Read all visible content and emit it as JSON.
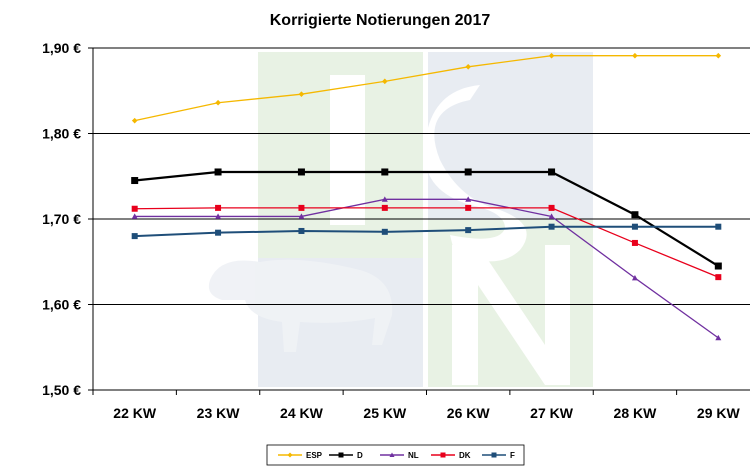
{
  "chart_data": {
    "type": "line",
    "title": "Korrigierte Notierungen 2017",
    "categories": [
      "22 KW",
      "23 KW",
      "24 KW",
      "25 KW",
      "26 KW",
      "27 KW",
      "28 KW",
      "29 KW"
    ],
    "y_tick_labels": [
      "1,90 €",
      "1,80 €",
      "1,70 €",
      "1,60 €",
      "1,50 €"
    ],
    "y_ticks": [
      1.9,
      1.8,
      1.7,
      1.6,
      1.5
    ],
    "ylim": [
      1.5,
      1.9
    ],
    "grid": true,
    "legend_position": "bottom",
    "watermark": "ISN",
    "series": [
      {
        "name": "ESP",
        "color": "#f5b800",
        "marker": "diamond",
        "values": [
          1.815,
          1.836,
          1.846,
          1.861,
          1.878,
          1.891,
          1.891,
          1.891
        ]
      },
      {
        "name": "D",
        "color": "#000000",
        "marker": "square",
        "values": [
          1.745,
          1.755,
          1.755,
          1.755,
          1.755,
          1.755,
          1.705,
          1.645
        ]
      },
      {
        "name": "NL",
        "color": "#7030a0",
        "marker": "triangle",
        "values": [
          1.703,
          1.703,
          1.703,
          1.723,
          1.723,
          1.703,
          1.631,
          1.561
        ]
      },
      {
        "name": "DK",
        "color": "#e8001c",
        "marker": "square",
        "values": [
          1.712,
          1.713,
          1.713,
          1.713,
          1.713,
          1.713,
          1.672,
          1.632
        ]
      },
      {
        "name": "F",
        "color": "#1f4e79",
        "marker": "square",
        "values": [
          1.68,
          1.684,
          1.686,
          1.685,
          1.687,
          1.691,
          1.691,
          1.691
        ]
      }
    ]
  }
}
